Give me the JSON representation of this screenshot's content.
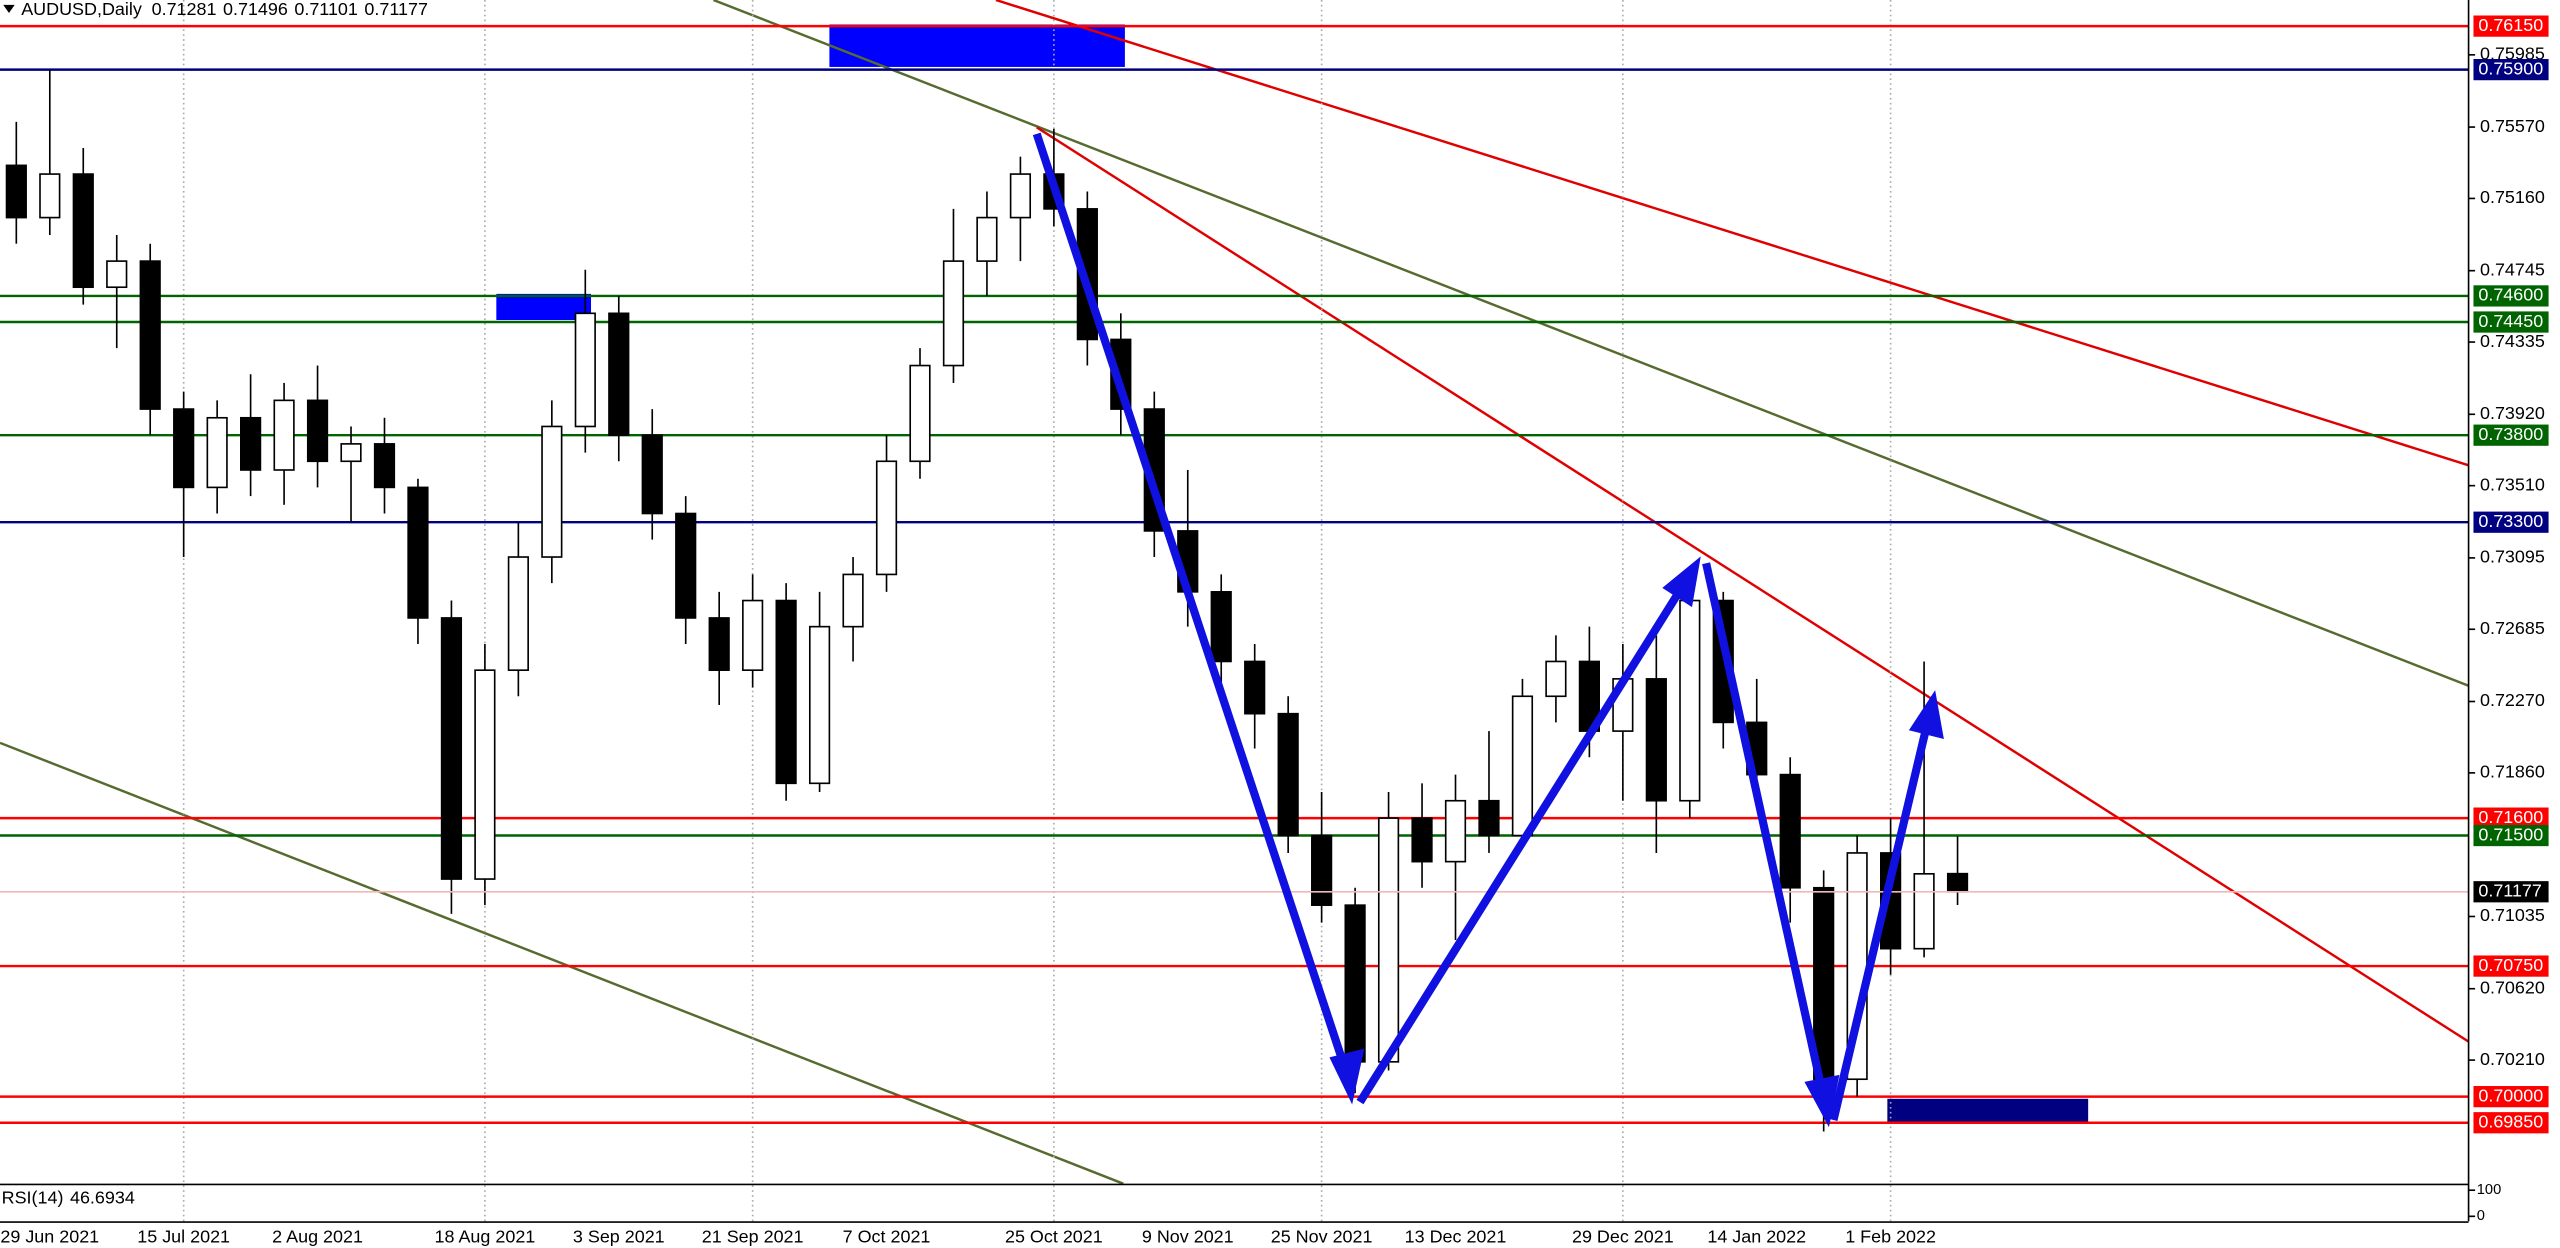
{
  "chart_data": {
    "type": "candlestick",
    "symbol": "AUDUSD,Daily",
    "ylim": [
      0.695,
      0.763
    ],
    "yticks": [
      {
        "value": 0.75985,
        "label": "0.75985"
      },
      {
        "value": 0.7557,
        "label": "0.75570"
      },
      {
        "value": 0.7516,
        "label": "0.75160"
      },
      {
        "value": 0.74745,
        "label": "0.74745"
      },
      {
        "value": 0.74335,
        "label": "0.74335"
      },
      {
        "value": 0.7392,
        "label": "0.73920"
      },
      {
        "value": 0.7351,
        "label": "0.73510"
      },
      {
        "value": 0.73095,
        "label": "0.73095"
      },
      {
        "value": 0.72685,
        "label": "0.72685"
      },
      {
        "value": 0.7227,
        "label": "0.72270"
      },
      {
        "value": 0.7186,
        "label": "0.71860"
      },
      {
        "value": 0.71035,
        "label": "0.71035"
      },
      {
        "value": 0.7062,
        "label": "0.70620"
      },
      {
        "value": 0.7021,
        "label": "0.70210"
      }
    ],
    "levels": [
      {
        "value": 0.7615,
        "label": "0.76150",
        "color": "#ff0000"
      },
      {
        "value": 0.759,
        "label": "0.75900",
        "color": "#000080"
      },
      {
        "value": 0.746,
        "label": "0.74600",
        "color": "#006400"
      },
      {
        "value": 0.7445,
        "label": "0.74450",
        "color": "#006400"
      },
      {
        "value": 0.738,
        "label": "0.73800",
        "color": "#006400"
      },
      {
        "value": 0.733,
        "label": "0.73300",
        "color": "#000080"
      },
      {
        "value": 0.716,
        "label": "0.71600",
        "color": "#ff0000"
      },
      {
        "value": 0.715,
        "label": "0.71500",
        "color": "#006400"
      },
      {
        "value": 0.7075,
        "label": "0.70750",
        "color": "#ff0000"
      },
      {
        "value": 0.7,
        "label": "0.70000",
        "color": "#ff0000"
      },
      {
        "value": 0.6985,
        "label": "0.69850",
        "color": "#ff0000"
      }
    ],
    "categories": [
      null,
      "29 Jun 2021",
      null,
      null,
      null,
      "15 Jul 2021",
      null,
      null,
      null,
      "2 Aug 2021",
      null,
      null,
      null,
      null,
      "18 Aug 2021",
      null,
      null,
      null,
      "3 Sep 2021",
      null,
      null,
      null,
      "21 Sep 2021",
      null,
      null,
      null,
      "7 Oct 2021",
      null,
      null,
      null,
      null,
      "25 Oct 2021",
      null,
      null,
      null,
      "9 Nov 2021",
      null,
      null,
      null,
      "25 Nov 2021",
      null,
      null,
      null,
      "13 Dec 2021",
      null,
      null,
      null,
      null,
      "29 Dec 2021",
      null,
      null,
      null,
      "14 Jan 2022",
      null,
      null,
      null,
      "1 Feb 2022",
      null,
      null
    ],
    "candles": [
      [
        0.7535,
        0.756,
        0.749,
        0.7505
      ],
      [
        0.7505,
        0.759,
        0.7495,
        0.753
      ],
      [
        0.753,
        0.7545,
        0.7455,
        0.7465
      ],
      [
        0.7465,
        0.7495,
        0.743,
        0.748
      ],
      [
        0.748,
        0.749,
        0.738,
        0.7395
      ],
      [
        0.7395,
        0.7405,
        0.731,
        0.735
      ],
      [
        0.735,
        0.74,
        0.7335,
        0.739
      ],
      [
        0.739,
        0.7415,
        0.7345,
        0.736
      ],
      [
        0.736,
        0.741,
        0.734,
        0.74
      ],
      [
        0.74,
        0.742,
        0.735,
        0.7365
      ],
      [
        0.7365,
        0.7385,
        0.733,
        0.7375
      ],
      [
        0.7375,
        0.739,
        0.7335,
        0.735
      ],
      [
        0.735,
        0.7355,
        0.726,
        0.7275
      ],
      [
        0.7275,
        0.7285,
        0.7105,
        0.7125
      ],
      [
        0.7125,
        0.726,
        0.711,
        0.7245
      ],
      [
        0.7245,
        0.733,
        0.723,
        0.731
      ],
      [
        0.731,
        0.74,
        0.7295,
        0.7385
      ],
      [
        0.7385,
        0.7475,
        0.737,
        0.745
      ],
      [
        0.745,
        0.746,
        0.7365,
        0.738
      ],
      [
        0.738,
        0.7395,
        0.732,
        0.7335
      ],
      [
        0.7335,
        0.7345,
        0.726,
        0.7275
      ],
      [
        0.7275,
        0.729,
        0.7225,
        0.7245
      ],
      [
        0.7245,
        0.73,
        0.7235,
        0.7285
      ],
      [
        0.7285,
        0.7295,
        0.717,
        0.718
      ],
      [
        0.718,
        0.729,
        0.7175,
        0.727
      ],
      [
        0.727,
        0.731,
        0.725,
        0.73
      ],
      [
        0.73,
        0.738,
        0.729,
        0.7365
      ],
      [
        0.7365,
        0.743,
        0.7355,
        0.742
      ],
      [
        0.742,
        0.751,
        0.741,
        0.748
      ],
      [
        0.748,
        0.752,
        0.746,
        0.7505
      ],
      [
        0.7505,
        0.754,
        0.748,
        0.753
      ],
      [
        0.753,
        0.7556,
        0.75,
        0.751
      ],
      [
        0.751,
        0.752,
        0.742,
        0.7435
      ],
      [
        0.7435,
        0.745,
        0.738,
        0.7395
      ],
      [
        0.7395,
        0.7405,
        0.731,
        0.7325
      ],
      [
        0.7325,
        0.736,
        0.727,
        0.729
      ],
      [
        0.729,
        0.73,
        0.7235,
        0.725
      ],
      [
        0.725,
        0.726,
        0.72,
        0.722
      ],
      [
        0.722,
        0.723,
        0.714,
        0.715
      ],
      [
        0.715,
        0.7175,
        0.71,
        0.711
      ],
      [
        0.711,
        0.712,
        0.7002,
        0.702
      ],
      [
        0.702,
        0.7175,
        0.7015,
        0.716
      ],
      [
        0.716,
        0.718,
        0.712,
        0.7135
      ],
      [
        0.7135,
        0.7185,
        0.709,
        0.717
      ],
      [
        0.717,
        0.721,
        0.714,
        0.715
      ],
      [
        0.715,
        0.724,
        0.7145,
        0.723
      ],
      [
        0.723,
        0.7265,
        0.7215,
        0.725
      ],
      [
        0.725,
        0.727,
        0.7195,
        0.721
      ],
      [
        0.721,
        0.726,
        0.717,
        0.724
      ],
      [
        0.724,
        0.7265,
        0.714,
        0.717
      ],
      [
        0.717,
        0.73,
        0.716,
        0.7285
      ],
      [
        0.7285,
        0.729,
        0.72,
        0.7215
      ],
      [
        0.7215,
        0.724,
        0.717,
        0.7185
      ],
      [
        0.7185,
        0.7195,
        0.71,
        0.712
      ],
      [
        0.712,
        0.713,
        0.698,
        0.701
      ],
      [
        0.701,
        0.715,
        0.7,
        0.714
      ],
      [
        0.714,
        0.716,
        0.707,
        0.7085
      ],
      [
        0.7085,
        0.725,
        0.708,
        0.7128
      ],
      [
        0.71281,
        0.71496,
        0.71101,
        0.71177
      ]
    ],
    "rsi": {
      "name": "RSI(14)",
      "value": 46.6934,
      "ylim": [
        0,
        100
      ],
      "yticks": [
        100,
        0
      ]
    }
  }
}
